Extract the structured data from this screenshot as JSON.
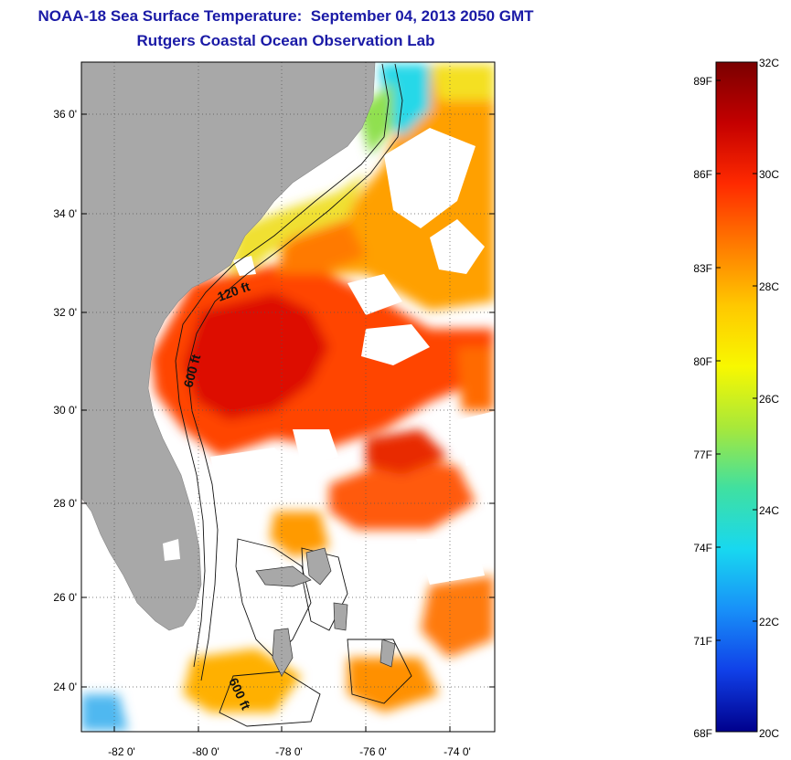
{
  "title": {
    "line1": "NOAA-18 Sea Surface Temperature:  September 04, 2013 2050 GMT",
    "line2": "Rutgers Coastal Ocean Observation Lab"
  },
  "map": {
    "lat_ticks": [
      "36 0'",
      "34 0'",
      "32 0'",
      "30 0'",
      "28 0'",
      "26 0'",
      "24 0'"
    ],
    "lon_ticks": [
      "-82 0'",
      "-80 0'",
      "-78 0'",
      "-76 0'",
      "-74 0'"
    ],
    "contour_labels": [
      "120 ft",
      "600 ft",
      "600 ft"
    ],
    "colors": {
      "land": "#a8a8a8",
      "cloud": "#ffffff"
    }
  },
  "colorbar": {
    "fahrenheit": [
      "89F",
      "86F",
      "83F",
      "80F",
      "77F",
      "74F",
      "71F",
      "68F"
    ],
    "celsius": [
      "32C",
      "30C",
      "28C",
      "26C",
      "24C",
      "22C",
      "20C"
    ],
    "stops": [
      "#7a0000",
      "#c40000",
      "#ff2a00",
      "#ff7a00",
      "#ffc800",
      "#f8f800",
      "#a8e83a",
      "#40e0a0",
      "#18d8f0",
      "#1890f8",
      "#1040e8",
      "#00008c"
    ]
  }
}
